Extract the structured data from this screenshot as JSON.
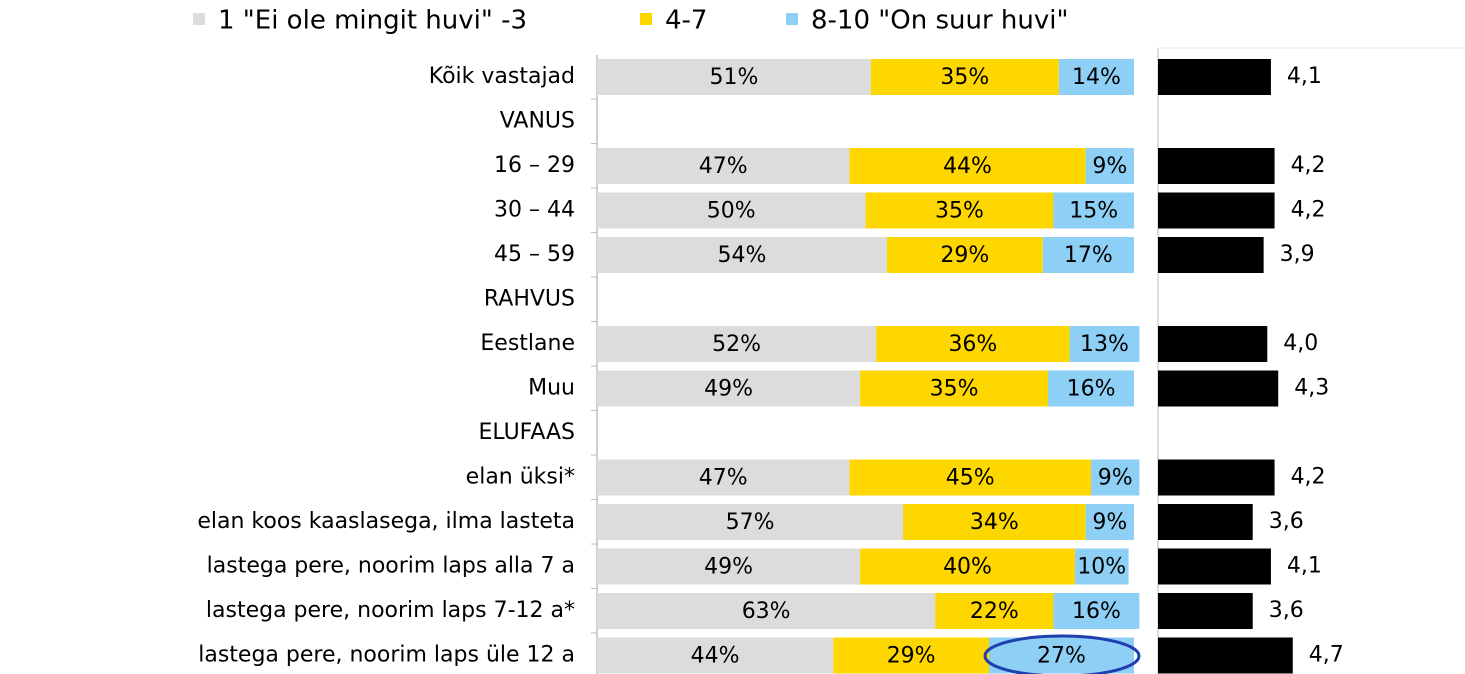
{
  "chart_data": [
    {
      "type": "bar",
      "orientation": "horizontal",
      "stacked": true,
      "legend": "top",
      "categories": [
        "Kõik vastajad",
        "VANUS",
        "16 – 29",
        "30 – 44",
        "45 – 59",
        "RAHVUS",
        "Eestlane",
        "Muu",
        "ELUFAAS",
        "elan üksi*",
        "elan koos kaaslasega, ilma lasteta",
        "lastega pere, noorim laps alla 7 a",
        "lastega pere, noorim laps 7-12 a*",
        "lastega pere, noorim laps üle 12 a"
      ],
      "xlim": [
        0,
        100
      ],
      "series": [
        {
          "name": "1 \"Ei ole mingit huvi\" -3",
          "color": "#dcdcdc",
          "values": [
            51,
            null,
            47,
            50,
            54,
            null,
            52,
            49,
            null,
            47,
            57,
            49,
            63,
            44
          ],
          "value_labels": [
            "51%",
            null,
            "47%",
            "50%",
            "54%",
            null,
            "52%",
            "49%",
            null,
            "47%",
            "57%",
            "49%",
            "63%",
            "44%"
          ]
        },
        {
          "name": "4-7",
          "color": "#ffd700",
          "values": [
            35,
            null,
            44,
            35,
            29,
            null,
            36,
            35,
            null,
            45,
            34,
            40,
            22,
            29
          ],
          "value_labels": [
            "35%",
            null,
            "44%",
            "35%",
            "29%",
            null,
            "36%",
            "35%",
            null,
            "45%",
            "34%",
            "40%",
            "22%",
            "29%"
          ]
        },
        {
          "name": "8-10 \"On suur huvi\"",
          "color": "#8ecff5",
          "values": [
            14,
            null,
            9,
            15,
            17,
            null,
            13,
            16,
            null,
            9,
            9,
            10,
            16,
            27
          ],
          "value_labels": [
            "14%",
            null,
            "9%",
            "15%",
            "17%",
            null,
            "13%",
            "16%",
            null,
            "9%",
            "9%",
            "10%",
            "16%",
            "27%"
          ]
        }
      ]
    },
    {
      "type": "bar",
      "orientation": "horizontal",
      "color": "#000000",
      "xlim": [
        1,
        8
      ],
      "values": [
        4.1,
        null,
        4.2,
        4.2,
        3.9,
        null,
        4.0,
        4.3,
        null,
        4.2,
        3.6,
        4.1,
        3.6,
        4.7
      ],
      "value_labels": [
        "4,1",
        null,
        "4,2",
        "4,2",
        "3,9",
        null,
        "4,0",
        "4,3",
        null,
        "4,2",
        "3,6",
        "4,1",
        "3,6",
        "4,7"
      ]
    }
  ]
}
